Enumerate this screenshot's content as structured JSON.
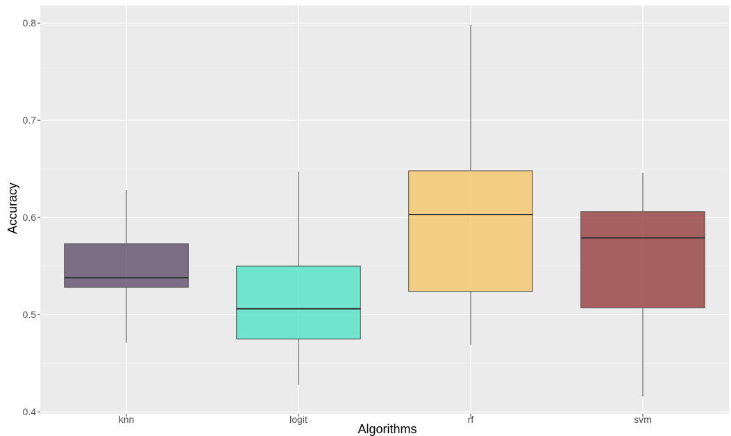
{
  "chart_data": {
    "type": "boxplot",
    "title": "",
    "xlabel": "Algorithms",
    "ylabel": "Accuracy",
    "ylim": [
      0.398,
      0.818
    ],
    "yticks": [
      0.4,
      0.5,
      0.6,
      0.7,
      0.8
    ],
    "ytick_labels": [
      "0.4",
      "0.5",
      "0.6",
      "0.7",
      "0.8"
    ],
    "grid": true,
    "legend": "none",
    "categories": [
      "knn",
      "logit",
      "rf",
      "svm"
    ],
    "boxes": [
      {
        "category": "knn",
        "min": 0.471,
        "q1": 0.528,
        "median": 0.538,
        "q3": 0.573,
        "max": 0.628,
        "color": "#4f3b5b"
      },
      {
        "category": "logit",
        "min": 0.428,
        "q1": 0.475,
        "median": 0.506,
        "q3": 0.55,
        "max": 0.647,
        "color": "#40e0c0"
      },
      {
        "category": "rf",
        "min": 0.469,
        "q1": 0.524,
        "median": 0.603,
        "q3": 0.648,
        "max": 0.798,
        "color": "#f5c15a"
      },
      {
        "category": "svm",
        "min": 0.416,
        "q1": 0.507,
        "median": 0.579,
        "q3": 0.606,
        "max": 0.646,
        "color": "#8b2a2a"
      }
    ]
  }
}
